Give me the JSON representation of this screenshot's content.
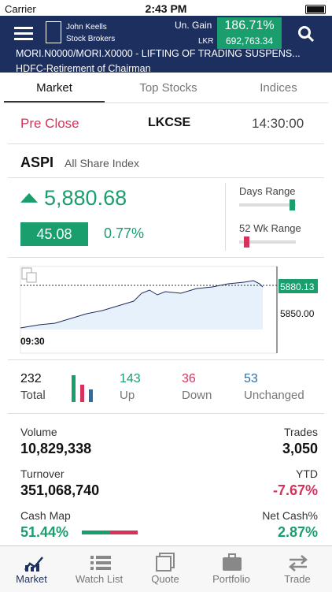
{
  "status": {
    "carrier": "Carrier",
    "time": "2:43 PM"
  },
  "header": {
    "brand_line1": "John Keells",
    "brand_line2": "Stock Brokers",
    "gain_label": "Un. Gain",
    "gain_percent": "186.71%",
    "currency": "LKR",
    "gain_amount": "692,763.34"
  },
  "ticker": [
    "MORI.N0000/MORI.X0000 - LIFTING OF TRADING SUSPENS...",
    "HDFC-Retirement of Chairman"
  ],
  "tabs": [
    "Market",
    "Top Stocks",
    "Indices"
  ],
  "session": {
    "status": "Pre Close",
    "market": "LKCSE",
    "time": "14:30:00"
  },
  "index": {
    "code": "ASPI",
    "name": "All Share Index",
    "value": "5,880.68",
    "change": "45.08",
    "change_percent": "0.77%",
    "days_range": "Days Range",
    "week52_range": "52 Wk Range"
  },
  "chart": {
    "last": "5880.13",
    "level": "5850.00",
    "start_time": "09:30"
  },
  "counts": [
    {
      "value": "232",
      "label": "Total"
    },
    {
      "value": "143",
      "label": "Up"
    },
    {
      "value": "36",
      "label": "Down"
    },
    {
      "value": "53",
      "label": "Unchanged"
    }
  ],
  "stats": [
    {
      "label": "Volume",
      "value": "10,829,338"
    },
    {
      "label": "Trades",
      "value": "3,050"
    },
    {
      "label": "Turnover",
      "value": "351,068,740"
    },
    {
      "label": "YTD",
      "value": "-7.67%"
    },
    {
      "label": "Cash Map",
      "value": "51.44%"
    },
    {
      "label": "Net Cash%",
      "value": "2.87%"
    }
  ],
  "nav": [
    "Market",
    "Watch List",
    "Quote",
    "Portfolio",
    "Trade"
  ]
}
